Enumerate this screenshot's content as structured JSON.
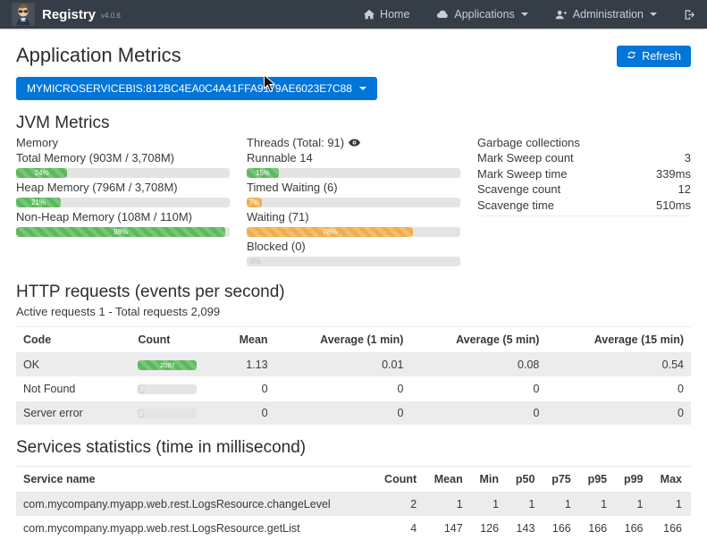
{
  "colors": {
    "accent": "#0275d8",
    "navbar": "#353d47",
    "success": "#5cb85c",
    "warning": "#f0ad4e"
  },
  "navbar": {
    "brand": "Registry",
    "version": "v4.0.6",
    "items": [
      {
        "id": "home",
        "icon": "home",
        "label": "Home",
        "caret": false
      },
      {
        "id": "applications",
        "icon": "cloud",
        "label": "Applications",
        "caret": true
      },
      {
        "id": "administration",
        "icon": "user-plus",
        "label": "Administration",
        "caret": true
      },
      {
        "id": "sign-out",
        "icon": "sign-out",
        "label": "",
        "caret": false
      }
    ]
  },
  "page": {
    "title": "Application Metrics",
    "refresh_label": "Refresh",
    "instance_label": "MYMICROSERVICEBIS:812BC4EA0C4A41FFA9179AE6023E7C88"
  },
  "jvm": {
    "heading": "JVM Metrics",
    "memory": {
      "title": "Memory",
      "bars": [
        {
          "label": "Total Memory (903M / 3,708M)",
          "percent": 24,
          "percent_label": "24%",
          "color": "green"
        },
        {
          "label": "Heap Memory (796M / 3,708M)",
          "percent": 21,
          "percent_label": "21%",
          "color": "green"
        },
        {
          "label": "Non-Heap Memory (108M / 110M)",
          "percent": 98,
          "percent_label": "98%",
          "color": "green"
        }
      ]
    },
    "threads": {
      "title": "Threads (Total: 91)",
      "bars": [
        {
          "label": "Runnable 14",
          "percent": 15,
          "percent_label": "15%",
          "color": "green"
        },
        {
          "label": "Timed Waiting (6)",
          "percent": 7,
          "percent_label": "7%",
          "color": "orange"
        },
        {
          "label": "Waiting (71)",
          "percent": 78,
          "percent_label": "78%",
          "color": "orange"
        },
        {
          "label": "Blocked (0)",
          "percent": 0,
          "percent_label": "0%",
          "color": "gray"
        }
      ]
    },
    "garbage": {
      "title": "Garbage collections",
      "rows": [
        {
          "label": "Mark Sweep count",
          "value": "3"
        },
        {
          "label": "Mark Sweep time",
          "value": "339ms"
        },
        {
          "label": "Scavenge count",
          "value": "12"
        },
        {
          "label": "Scavenge time",
          "value": "510ms"
        }
      ]
    }
  },
  "http": {
    "heading": "HTTP requests (events per second)",
    "subtitle": "Active requests 1 - Total requests 2,099",
    "columns": [
      "Code",
      "Count",
      "Mean",
      "Average (1 min)",
      "Average (5 min)",
      "Average (15 min)"
    ],
    "rows": [
      {
        "code": "OK",
        "count_label": "2097",
        "count_percent": 100,
        "count_color": "green",
        "mean": "1.13",
        "avg1": "0.01",
        "avg5": "0.08",
        "avg15": "0.54"
      },
      {
        "code": "Not Found",
        "count_label": "2",
        "count_percent": 12,
        "count_color": "gray",
        "mean": "0",
        "avg1": "0",
        "avg5": "0",
        "avg15": "0"
      },
      {
        "code": "Server error",
        "count_label": "0",
        "count_percent": 10,
        "count_color": "gray",
        "mean": "0",
        "avg1": "0",
        "avg5": "0",
        "avg15": "0"
      }
    ]
  },
  "services": {
    "heading": "Services statistics (time in millisecond)",
    "columns": [
      "Service name",
      "Count",
      "Mean",
      "Min",
      "p50",
      "p75",
      "p95",
      "p99",
      "Max"
    ],
    "rows": [
      {
        "name": "com.mycompany.myapp.web.rest.LogsResource.changeLevel",
        "values": [
          "2",
          "1",
          "1",
          "1",
          "1",
          "1",
          "1",
          "1"
        ]
      },
      {
        "name": "com.mycompany.myapp.web.rest.LogsResource.getList",
        "values": [
          "4",
          "147",
          "126",
          "143",
          "166",
          "166",
          "166",
          "166"
        ]
      }
    ]
  }
}
